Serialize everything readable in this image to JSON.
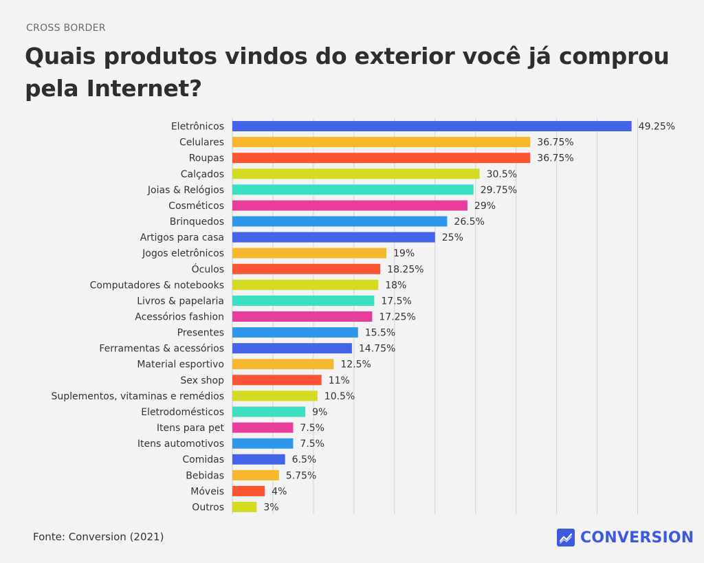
{
  "header": {
    "kicker": "CROSS BORDER",
    "title": "Quais produtos vindos do exterior você já comprou pela Internet?"
  },
  "footer": {
    "source": "Fonte: Conversion (2021)",
    "brand": "CONVERSION",
    "brand_icon": "chart-line-logo-icon"
  },
  "chart_data": {
    "type": "bar",
    "orientation": "horizontal",
    "title": "Quais produtos vindos do exterior você já comprou pela Internet?",
    "xlim": [
      0,
      50
    ],
    "grid": true,
    "legend": "none",
    "categories": [
      "Eletrônicos",
      "Celulares",
      "Roupas",
      "Calçados",
      "Joias & Relógios",
      "Cosméticos",
      "Brinquedos",
      "Artigos para casa",
      "Jogos eletrônicos",
      "Óculos",
      "Computadores & notebooks",
      "Livros & papelaria",
      "Acessórios fashion",
      "Presentes",
      "Ferramentas & acessórios",
      "Material esportivo",
      "Sex shop",
      "Suplementos, vitaminas e remédios",
      "Eletrodomésticos",
      "Itens para pet",
      "Itens automotivos",
      "Comidas",
      "Bebidas",
      "Móveis",
      "Outros"
    ],
    "values": [
      49.25,
      36.75,
      36.75,
      30.5,
      29.75,
      29,
      26.5,
      25,
      19,
      18.25,
      18,
      17.5,
      17.25,
      15.5,
      14.75,
      12.5,
      11,
      10.5,
      9,
      7.5,
      7.5,
      6.5,
      5.75,
      4,
      3
    ],
    "labels": [
      "49.25%",
      "36.75%",
      "36.75%",
      "30.5%",
      "29.75%",
      "29%",
      "26.5%",
      "25%",
      "19%",
      "18.25%",
      "18%",
      "17.5%",
      "17.25%",
      "15.5%",
      "14.75%",
      "12.5%",
      "11%",
      "10.5%",
      "9%",
      "7.5%",
      "7.5%",
      "6.5%",
      "5.75%",
      "4%",
      "3%"
    ],
    "colors": [
      "#4363e8",
      "#f6b62d",
      "#fb5534",
      "#d3db22",
      "#3cdfc2",
      "#e83e9b",
      "#2f97ea"
    ]
  }
}
